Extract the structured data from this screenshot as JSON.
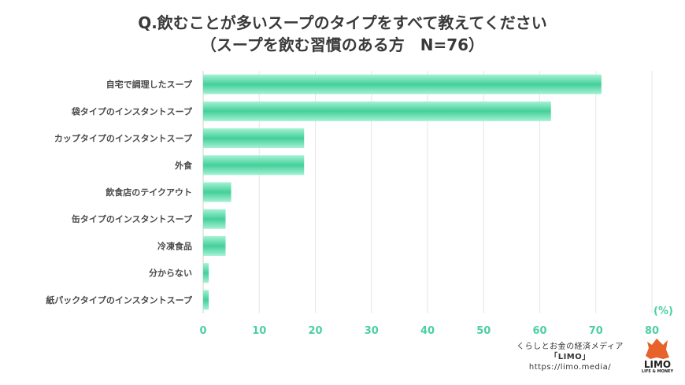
{
  "header": {
    "title_line1": "Q.飲むことが多いスープのタイプをすべて教えてください",
    "title_line2": "（スープを飲む習慣のある方　N=76）"
  },
  "chart_data": {
    "type": "bar",
    "orientation": "horizontal",
    "categories": [
      "自宅で調理したスープ",
      "袋タイプのインスタントスープ",
      "カップタイプのインスタントスープ",
      "外食",
      "飲食店のテイクアウト",
      "缶タイプのインスタントスープ",
      "冷凍食品",
      "分からない",
      "紙パックタイプのインスタントスープ"
    ],
    "values": [
      71,
      62,
      18,
      18,
      5,
      4,
      4,
      1,
      1
    ],
    "xlim": [
      0,
      80
    ],
    "xticks": [
      0,
      10,
      20,
      30,
      40,
      50,
      60,
      70,
      80
    ],
    "unit_label": "(%)",
    "grid": true,
    "bar_color_light": "#a4f2d4",
    "bar_color_dark": "#45cf9a",
    "tick_color": "#4ccfa3"
  },
  "footer": {
    "line1": "くらしとお金の経済メディア",
    "line2": "「LIMO」",
    "line3": "https://limo.media/"
  },
  "logo": {
    "name": "LIMO",
    "tagline": "LIFE & MONEY",
    "color": "#e8622c"
  }
}
